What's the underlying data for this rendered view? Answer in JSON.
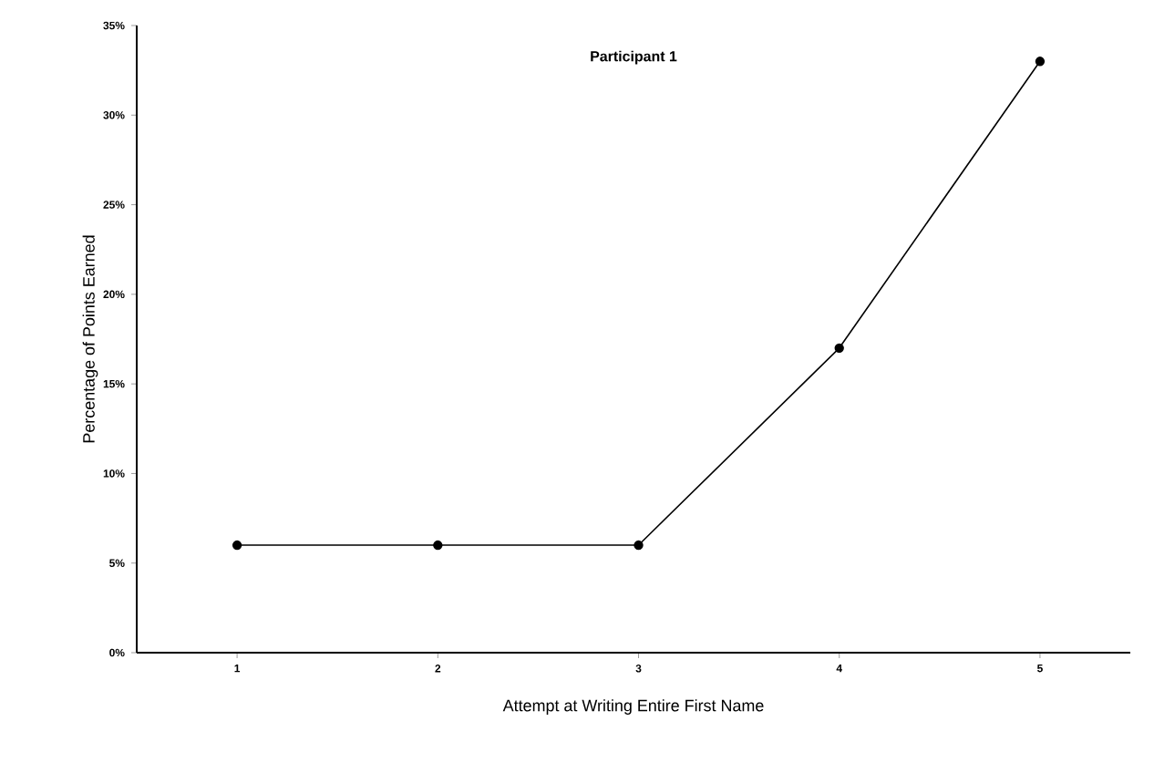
{
  "chart_data": {
    "type": "line",
    "title": "Participant 1",
    "xlabel": "Attempt at Writing Entire First Name",
    "ylabel": "Percentage of Points Earned",
    "categories": [
      "1",
      "2",
      "3",
      "4",
      "5"
    ],
    "series": [
      {
        "color": "#000000",
        "values": [
          6,
          6,
          6,
          17,
          33
        ]
      }
    ],
    "marker": "circle",
    "line_style": "solid",
    "grid": false,
    "ylim": [
      0,
      35
    ],
    "yticks": [
      {
        "value": 0,
        "label": "0%"
      },
      {
        "value": 5,
        "label": "5%"
      },
      {
        "value": 10,
        "label": "10%"
      },
      {
        "value": 15,
        "label": "15%"
      },
      {
        "value": 20,
        "label": "20%"
      },
      {
        "value": 25,
        "label": "25%"
      },
      {
        "value": 30,
        "label": "30%"
      },
      {
        "value": 35,
        "label": "35%"
      }
    ]
  }
}
